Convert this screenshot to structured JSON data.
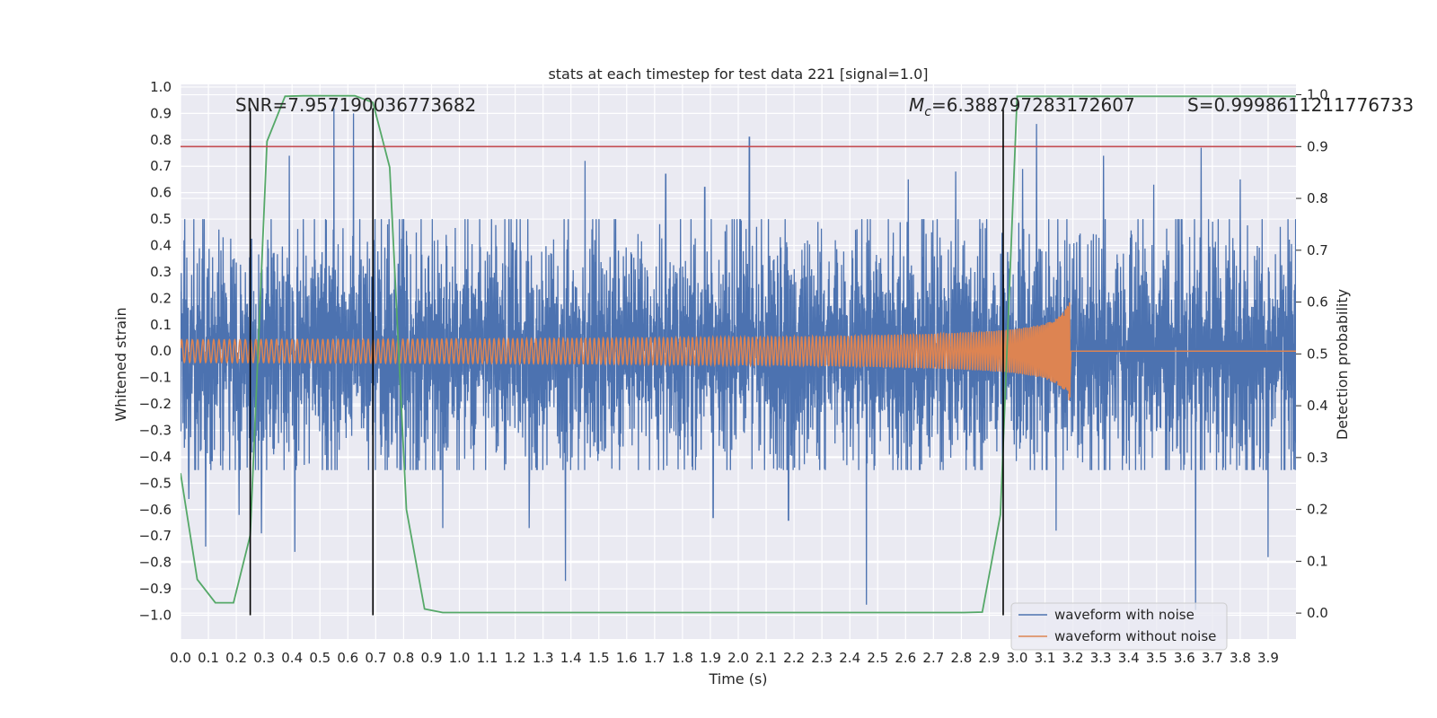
{
  "chart_data": {
    "type": "line",
    "title": "stats at each timestep for test data 221 [signal=1.0]",
    "xlabel": "Time (s)",
    "ylabel": "Whitened strain",
    "y2label": "Detection probability",
    "xlim": [
      0.0,
      4.0
    ],
    "ylim": [
      -1.09,
      1.01
    ],
    "y2lim": [
      -0.05,
      1.02
    ],
    "grid": true,
    "x_ticks": [
      "0.0",
      "0.1",
      "0.2",
      "0.3",
      "0.4",
      "0.5",
      "0.6",
      "0.7",
      "0.8",
      "0.9",
      "1.0",
      "1.1",
      "1.2",
      "1.3",
      "1.4",
      "1.5",
      "1.6",
      "1.7",
      "1.8",
      "1.9",
      "2.0",
      "2.1",
      "2.2",
      "2.3",
      "2.4",
      "2.5",
      "2.6",
      "2.7",
      "2.8",
      "2.9",
      "3.0",
      "3.1",
      "3.2",
      "3.3",
      "3.4",
      "3.5",
      "3.6",
      "3.7",
      "3.8",
      "3.9"
    ],
    "y_ticks": [
      "1.0",
      "0.9",
      "0.8",
      "0.7",
      "0.6",
      "0.5",
      "0.4",
      "0.3",
      "0.2",
      "0.1",
      "0.0",
      "−0.1",
      "−0.2",
      "−0.3",
      "−0.4",
      "−0.5",
      "−0.6",
      "−0.7",
      "−0.8",
      "−0.9",
      "−1.0"
    ],
    "y2_ticks": [
      "1.0",
      "0.9",
      "0.8",
      "0.7",
      "0.6",
      "0.5",
      "0.4",
      "0.3",
      "0.2",
      "0.1",
      "0.0"
    ],
    "annotations": {
      "snr": "SNR=7.957190036773682",
      "mc_symbol": "M",
      "mc_sub": "c",
      "mc_value": "=6.388797283172607",
      "s": "S=0.9998611211776733"
    },
    "threshold_line": {
      "axis": "y2",
      "value": 0.9,
      "color": "#c44e52"
    },
    "vertical_lines": [
      {
        "x": 0.25,
        "y_from": -1.0,
        "y_to": 0.92
      },
      {
        "x": 0.69,
        "y_from": -1.0,
        "y_to": 0.92
      },
      {
        "x": 2.95,
        "y_from": -1.0,
        "y_to": 0.92
      }
    ],
    "series": [
      {
        "name": "waveform with noise",
        "color": "#4c72b0",
        "axis": "y",
        "kind": "noise",
        "x_range": [
          0.0,
          4.0
        ],
        "typical_range": [
          -0.45,
          0.5
        ],
        "peaks": [
          {
            "x": 0.03,
            "y": -0.56
          },
          {
            "x": 0.09,
            "y": -0.74
          },
          {
            "x": 0.21,
            "y": -0.62
          },
          {
            "x": 0.29,
            "y": -0.69
          },
          {
            "x": 0.39,
            "y": 0.74
          },
          {
            "x": 0.41,
            "y": -0.76
          },
          {
            "x": 0.55,
            "y": 0.92
          },
          {
            "x": 0.62,
            "y": 0.9
          },
          {
            "x": 0.94,
            "y": -0.67
          },
          {
            "x": 1.25,
            "y": -0.67
          },
          {
            "x": 1.38,
            "y": -0.87
          },
          {
            "x": 1.45,
            "y": 0.72
          },
          {
            "x": 1.74,
            "y": 0.67
          },
          {
            "x": 1.88,
            "y": 0.62
          },
          {
            "x": 1.91,
            "y": -0.63
          },
          {
            "x": 2.04,
            "y": 0.81
          },
          {
            "x": 2.18,
            "y": -0.64
          },
          {
            "x": 2.46,
            "y": -0.96
          },
          {
            "x": 2.61,
            "y": 0.65
          },
          {
            "x": 2.78,
            "y": 0.68
          },
          {
            "x": 3.02,
            "y": 0.69
          },
          {
            "x": 3.07,
            "y": 0.86
          },
          {
            "x": 3.14,
            "y": -0.68
          },
          {
            "x": 3.31,
            "y": 0.74
          },
          {
            "x": 3.49,
            "y": 0.63
          },
          {
            "x": 3.64,
            "y": -0.98
          },
          {
            "x": 3.66,
            "y": 0.77
          },
          {
            "x": 3.8,
            "y": 0.65
          },
          {
            "x": 3.9,
            "y": -0.78
          }
        ]
      },
      {
        "name": "waveform without noise",
        "color": "#dd8452",
        "axis": "y",
        "kind": "chirp",
        "x_range": [
          0.0,
          3.19
        ],
        "amplitude_start": 0.025,
        "amplitude_end": 0.2,
        "merger_x": 3.19
      },
      {
        "color": "#55a868",
        "axis": "y2",
        "x": [
          0.0,
          0.06,
          0.125,
          0.19,
          0.25,
          0.31,
          0.375,
          0.44,
          0.5,
          0.56,
          0.625,
          0.69,
          0.75,
          0.81,
          0.875,
          0.94,
          1.0,
          1.5,
          2.0,
          2.5,
          2.81,
          2.875,
          2.94,
          3.0,
          3.06,
          3.5,
          3.9,
          4.0
        ],
        "y": [
          0.27,
          0.065,
          0.02,
          0.02,
          0.15,
          0.91,
          0.997,
          0.998,
          0.998,
          0.998,
          0.998,
          0.985,
          0.86,
          0.2,
          0.008,
          0.001,
          0.001,
          0.001,
          0.001,
          0.001,
          0.001,
          0.002,
          0.19,
          0.997,
          0.997,
          0.997,
          0.997,
          0.997
        ]
      }
    ],
    "legend": {
      "placement": "lower-right",
      "entries": [
        "waveform with noise",
        "waveform without noise"
      ]
    },
    "colors": {
      "plot_background": "#eaeaf2",
      "grid": "#ffffff",
      "vertical_lines": "#000000"
    }
  }
}
